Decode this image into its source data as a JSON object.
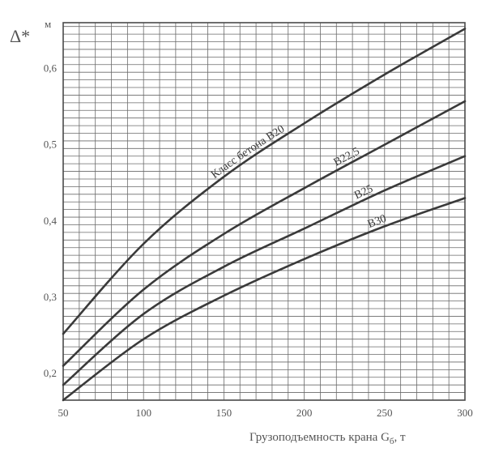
{
  "chart_data": {
    "type": "line",
    "ylabel_symbol": "Δ*",
    "y_unit": "м",
    "xlabel": "Грузоподъемность крана G",
    "xlabel_subscript": "б",
    "xlabel_unit": ", т",
    "xlim": [
      50,
      300
    ],
    "ylim": [
      0.165,
      0.66
    ],
    "x_ticks": [
      50,
      100,
      150,
      200,
      250,
      300
    ],
    "y_ticks": [
      0.2,
      0.3,
      0.4,
      0.5,
      0.6
    ],
    "y_tick_labels": [
      "0,2",
      "0,3",
      "0,4",
      "0,5",
      "0,6"
    ],
    "grid": true,
    "x": [
      50,
      100,
      150,
      200,
      250,
      300
    ],
    "series": [
      {
        "name": "Класс бетона В20",
        "values": [
          0.252,
          0.37,
          0.458,
          0.528,
          0.592,
          0.652
        ]
      },
      {
        "name": "В22,5",
        "values": [
          0.21,
          0.31,
          0.383,
          0.443,
          0.5,
          0.557
        ]
      },
      {
        "name": "В25",
        "values": [
          0.185,
          0.278,
          0.34,
          0.39,
          0.44,
          0.485
        ]
      },
      {
        "name": "В30",
        "values": [
          0.165,
          0.245,
          0.302,
          0.35,
          0.393,
          0.43
        ]
      }
    ],
    "colors": {
      "curve": "#3a3a3a",
      "grid": "#6a6a6a",
      "text": "#555555"
    }
  }
}
